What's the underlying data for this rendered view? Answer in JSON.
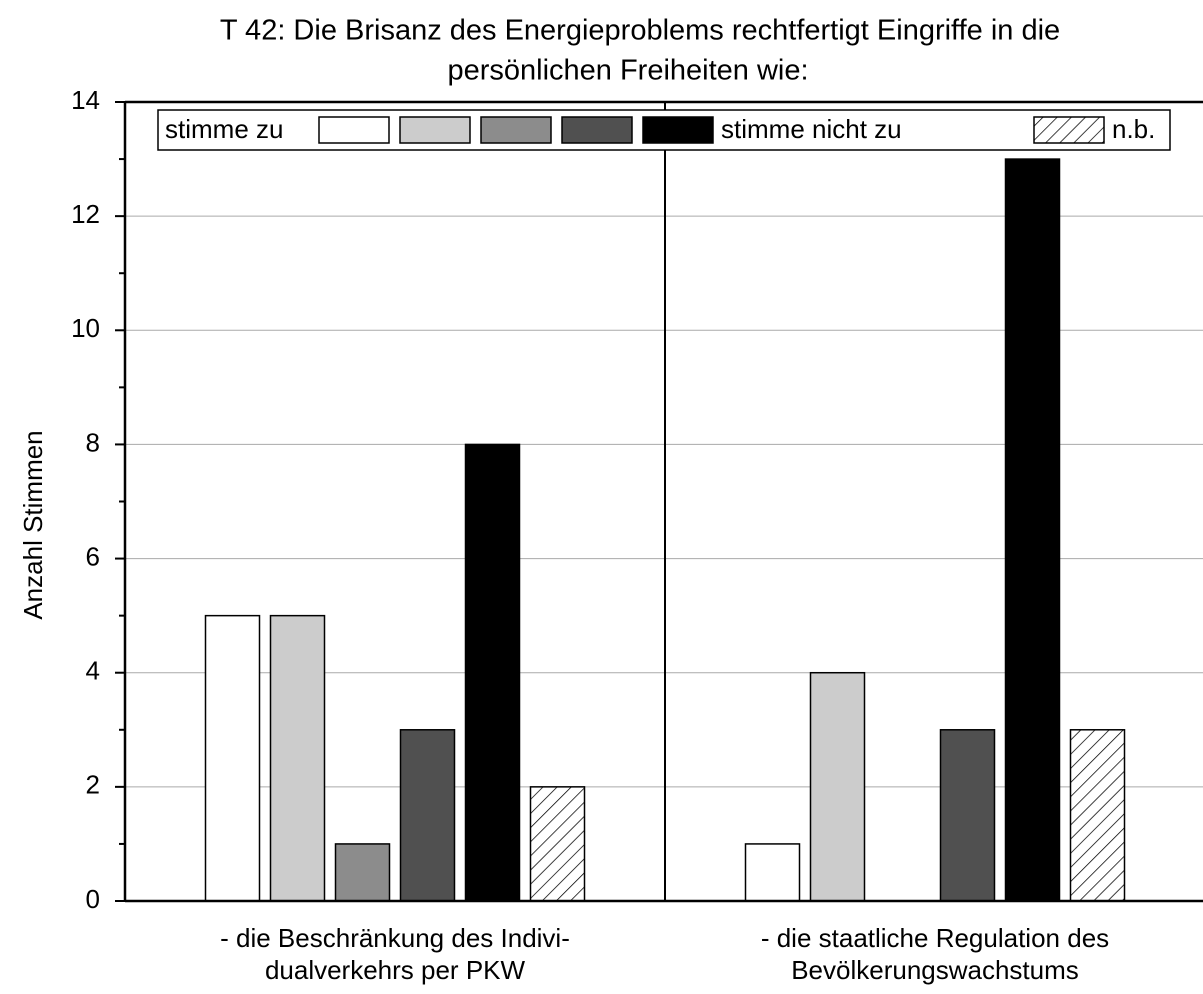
{
  "chart_data": {
    "type": "bar",
    "title": [
      "T 42: Die Brisanz des Energieproblems rechtfertigt Eingriffe in die",
      "persönlichen Freiheiten wie:"
    ],
    "ylabel": "Anzahl Stimmen",
    "categories": [
      [
        "- die Beschränkung des Indivi-",
        "dualverkehrs per PKW"
      ],
      [
        "- die staatliche Regulation des",
        "Bevölkerungswachstums"
      ]
    ],
    "series": [
      {
        "name": "stimme zu",
        "color": "#ffffff",
        "values": [
          5,
          1
        ]
      },
      {
        "name": null,
        "color": "#cccccc",
        "values": [
          5,
          4
        ]
      },
      {
        "name": null,
        "color": "#8c8c8c",
        "values": [
          1,
          0
        ]
      },
      {
        "name": null,
        "color": "#505050",
        "values": [
          3,
          3
        ]
      },
      {
        "name": "stimme nicht zu",
        "color": "#000000",
        "values": [
          8,
          13
        ]
      },
      {
        "name": "n.b.",
        "color": "#ffffff",
        "hatch": true,
        "values": [
          2,
          3
        ]
      }
    ],
    "ylim": [
      0,
      14
    ],
    "yticks": [
      0,
      2,
      4,
      6,
      8,
      10,
      12,
      14
    ],
    "grid": true,
    "legend": "top"
  }
}
